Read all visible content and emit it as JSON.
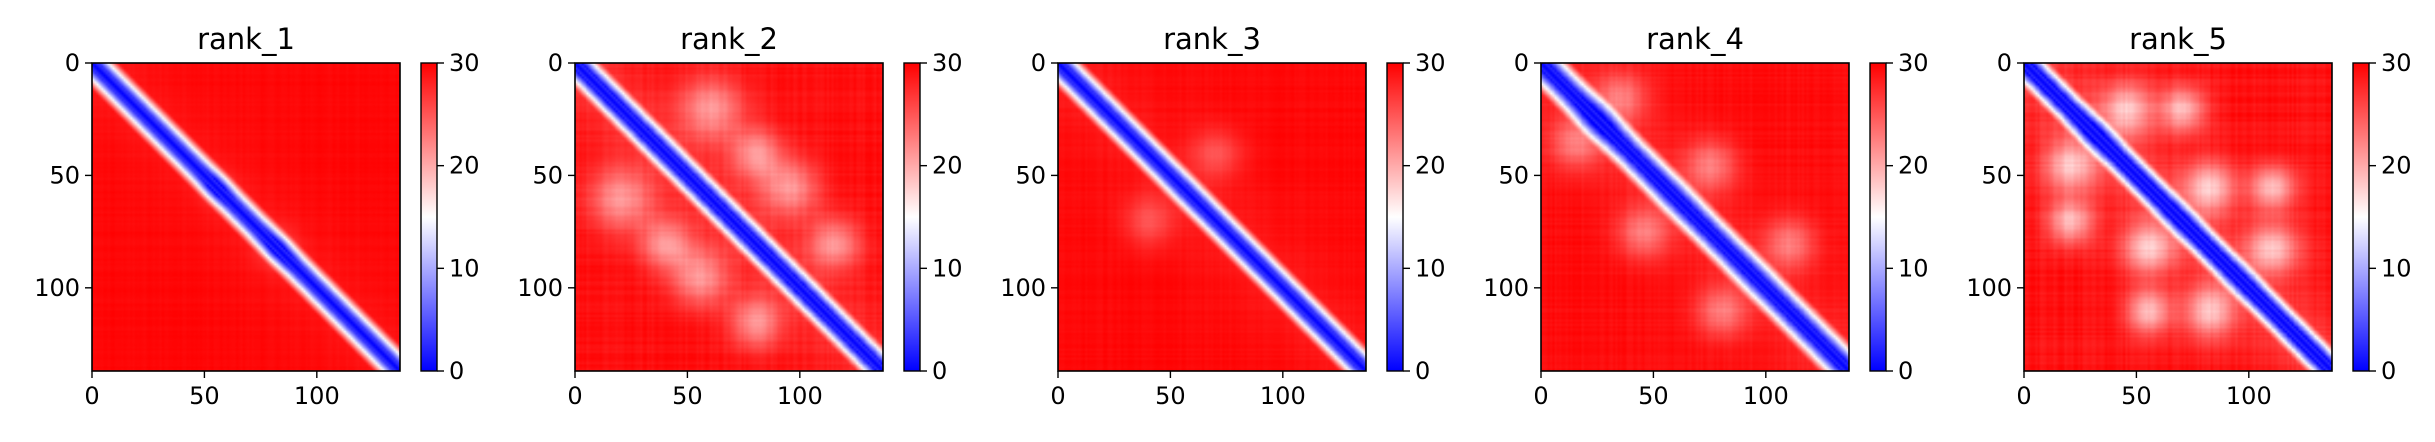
{
  "chart_data": [
    {
      "type": "heatmap",
      "title": "rank_1",
      "matrix_size": 137,
      "xlim": [
        0,
        137
      ],
      "ylim": [
        137,
        0
      ],
      "xticks": [
        0,
        50,
        100
      ],
      "yticks": [
        0,
        50,
        100
      ],
      "colorbar": {
        "min": 0,
        "max": 30,
        "ticks": [
          0,
          10,
          20,
          30
        ],
        "colormap": [
          "#0000ff",
          "#ffffff",
          "#ff0000"
        ]
      },
      "diagonal_band_width": 4,
      "blob_intensity": 0.25,
      "bumps": [
        [
          82,
          82,
          6
        ],
        [
          55,
          55,
          5
        ]
      ]
    },
    {
      "type": "heatmap",
      "title": "rank_2",
      "matrix_size": 137,
      "xlim": [
        0,
        137
      ],
      "ylim": [
        137,
        0
      ],
      "xticks": [
        0,
        50,
        100
      ],
      "yticks": [
        0,
        50,
        100
      ],
      "colorbar": {
        "min": 0,
        "max": 30,
        "ticks": [
          0,
          10,
          20,
          30
        ],
        "colormap": [
          "#0000ff",
          "#ffffff",
          "#ff0000"
        ]
      },
      "diagonal_band_width": 4,
      "blob_intensity": 0.55,
      "bumps": [
        [
          60,
          20,
          10
        ],
        [
          95,
          55,
          9
        ],
        [
          80,
          40,
          8
        ],
        [
          115,
          80,
          8
        ],
        [
          20,
          60,
          10
        ],
        [
          55,
          95,
          9
        ],
        [
          40,
          80,
          8
        ],
        [
          80,
          115,
          8
        ]
      ]
    },
    {
      "type": "heatmap",
      "title": "rank_3",
      "matrix_size": 137,
      "xlim": [
        0,
        137
      ],
      "ylim": [
        137,
        0
      ],
      "xticks": [
        0,
        50,
        100
      ],
      "yticks": [
        0,
        50,
        100
      ],
      "colorbar": {
        "min": 0,
        "max": 30,
        "ticks": [
          0,
          10,
          20,
          30
        ],
        "colormap": [
          "#0000ff",
          "#ffffff",
          "#ff0000"
        ]
      },
      "diagonal_band_width": 4,
      "blob_intensity": 0.3,
      "bumps": [
        [
          70,
          40,
          8
        ],
        [
          40,
          70,
          8
        ]
      ]
    },
    {
      "type": "heatmap",
      "title": "rank_4",
      "matrix_size": 137,
      "xlim": [
        0,
        137
      ],
      "ylim": [
        137,
        0
      ],
      "xticks": [
        0,
        50,
        100
      ],
      "yticks": [
        0,
        50,
        100
      ],
      "colorbar": {
        "min": 0,
        "max": 30,
        "ticks": [
          0,
          10,
          20,
          30
        ],
        "colormap": [
          "#0000ff",
          "#ffffff",
          "#ff0000"
        ]
      },
      "diagonal_band_width": 5,
      "blob_intensity": 0.45,
      "bumps": [
        [
          35,
          15,
          8
        ],
        [
          75,
          45,
          8
        ],
        [
          110,
          80,
          8
        ],
        [
          15,
          35,
          8
        ],
        [
          45,
          75,
          8
        ],
        [
          80,
          110,
          8
        ]
      ]
    },
    {
      "type": "heatmap",
      "title": "rank_5",
      "matrix_size": 137,
      "xlim": [
        0,
        137
      ],
      "ylim": [
        137,
        0
      ],
      "xticks": [
        0,
        50,
        100
      ],
      "yticks": [
        0,
        50,
        100
      ],
      "colorbar": {
        "min": 0,
        "max": 30,
        "ticks": [
          0,
          10,
          20,
          30
        ],
        "colormap": [
          "#0000ff",
          "#ffffff",
          "#ff0000"
        ]
      },
      "diagonal_band_width": 4,
      "blob_intensity": 0.7,
      "bumps": [
        [
          45,
          20,
          8
        ],
        [
          82,
          55,
          8
        ],
        [
          110,
          82,
          8
        ],
        [
          20,
          45,
          8
        ],
        [
          55,
          82,
          8
        ],
        [
          82,
          110,
          8
        ],
        [
          70,
          20,
          7
        ],
        [
          20,
          70,
          7
        ],
        [
          110,
          55,
          7
        ],
        [
          55,
          110,
          7
        ]
      ]
    }
  ]
}
